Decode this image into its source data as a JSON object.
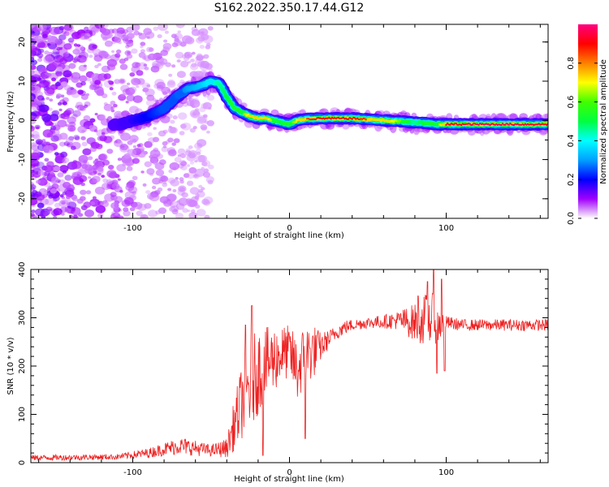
{
  "figure": {
    "title": "S162.2022.350.17.44.G12"
  },
  "chart_data": [
    {
      "type": "heatmap",
      "title": "",
      "xlabel": "Height of straight line (km)",
      "ylabel": "Frequency (Hz)",
      "xlim": [
        -165,
        165
      ],
      "ylim": [
        -25,
        24.5
      ],
      "xticks": [
        -100,
        0,
        100
      ],
      "yticks": [
        -20,
        -10,
        0,
        10,
        20
      ],
      "colorbar": {
        "label": "Normalized spectral amplitude",
        "range": [
          0.0,
          1.0
        ],
        "ticks": [
          0.0,
          0.2,
          0.4,
          0.6,
          0.8
        ],
        "colors": [
          "#ffffff",
          "#a000ff",
          "#0000ff",
          "#00a0ff",
          "#00ffff",
          "#00ff40",
          "#40ff00",
          "#ffff00",
          "#ff8000",
          "#ff0000",
          "#ff0080"
        ]
      },
      "ridge": {
        "x": [
          -108,
          -90,
          -80,
          -72,
          -65,
          -55,
          -50,
          -45,
          -40,
          -35,
          -30,
          -25,
          -20,
          -15,
          -10,
          -5,
          0,
          5,
          10,
          20,
          40,
          60,
          80,
          95,
          100,
          120,
          140,
          165
        ],
        "y": [
          -1,
          1,
          3,
          6,
          8,
          9,
          10,
          9.5,
          6,
          3,
          2,
          1,
          0.5,
          0.5,
          0,
          -0.5,
          -1,
          0,
          0.3,
          0.5,
          0.5,
          0,
          -0.5,
          -1,
          -1,
          -1,
          -1,
          -1
        ],
        "amplitude": [
          0.15,
          0.2,
          0.25,
          0.25,
          0.3,
          0.35,
          0.4,
          0.45,
          0.5,
          0.55,
          0.6,
          0.75,
          0.8,
          0.8,
          0.55,
          0.5,
          0.55,
          0.7,
          0.85,
          0.9,
          0.9,
          0.8,
          0.45,
          0.6,
          0.9,
          0.95,
          0.95,
          0.9
        ]
      }
    },
    {
      "type": "line",
      "title": "",
      "xlabel": "Height of straight line (km)",
      "ylabel": "SNR (10 * v/v)",
      "xlim": [
        -165,
        165
      ],
      "ylim": [
        0,
        400
      ],
      "xticks": [
        -100,
        0,
        100
      ],
      "yticks": [
        0,
        100,
        200,
        300,
        400
      ],
      "color": "#ee2222",
      "envelope": {
        "x": [
          -165,
          -110,
          -90,
          -80,
          -70,
          -60,
          -50,
          -40,
          -35,
          -30,
          -25,
          -20,
          -15,
          -10,
          -5,
          0,
          5,
          10,
          15,
          20,
          25,
          30,
          35,
          40,
          50,
          60,
          70,
          80,
          85,
          90,
          95,
          100,
          110,
          130,
          150,
          165
        ],
        "mean": [
          10,
          12,
          20,
          28,
          35,
          30,
          25,
          30,
          80,
          130,
          160,
          190,
          205,
          215,
          225,
          230,
          190,
          225,
          230,
          240,
          255,
          270,
          280,
          285,
          290,
          292,
          295,
          290,
          295,
          300,
          285,
          290,
          285,
          285,
          285,
          285
        ],
        "spread": [
          6,
          6,
          10,
          14,
          18,
          16,
          12,
          20,
          55,
          80,
          95,
          90,
          75,
          70,
          60,
          55,
          70,
          65,
          60,
          30,
          20,
          15,
          15,
          12,
          12,
          14,
          20,
          40,
          50,
          60,
          40,
          14,
          12,
          12,
          12,
          12
        ]
      },
      "spikes": [
        {
          "x": -28,
          "y": 285
        },
        {
          "x": -24,
          "y": 325
        },
        {
          "x": -17,
          "y": 15
        },
        {
          "x": 10,
          "y": 50
        },
        {
          "x": 82,
          "y": 345
        },
        {
          "x": 88,
          "y": 375
        },
        {
          "x": 92,
          "y": 400
        },
        {
          "x": 94,
          "y": 185
        },
        {
          "x": 97,
          "y": 380
        },
        {
          "x": 99,
          "y": 190
        }
      ]
    }
  ]
}
